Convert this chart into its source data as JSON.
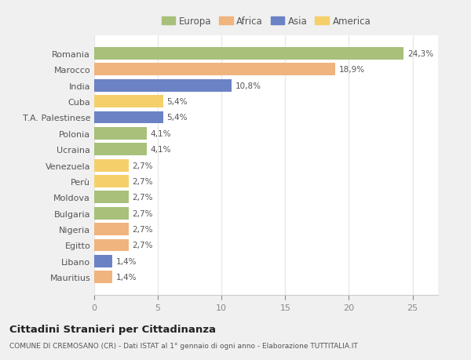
{
  "categories": [
    "Romania",
    "Marocco",
    "India",
    "Cuba",
    "T.A. Palestinese",
    "Polonia",
    "Ucraina",
    "Venezuela",
    "Perù",
    "Moldova",
    "Bulgaria",
    "Nigeria",
    "Egitto",
    "Libano",
    "Mauritius"
  ],
  "values": [
    24.3,
    18.9,
    10.8,
    5.4,
    5.4,
    4.1,
    4.1,
    2.7,
    2.7,
    2.7,
    2.7,
    2.7,
    2.7,
    1.4,
    1.4
  ],
  "labels": [
    "24,3%",
    "18,9%",
    "10,8%",
    "5,4%",
    "5,4%",
    "4,1%",
    "4,1%",
    "2,7%",
    "2,7%",
    "2,7%",
    "2,7%",
    "2,7%",
    "2,7%",
    "1,4%",
    "1,4%"
  ],
  "colors": [
    "#a8c07a",
    "#f0b47e",
    "#6b82c4",
    "#f5d06a",
    "#6b82c4",
    "#a8c07a",
    "#a8c07a",
    "#f5d06a",
    "#f5d06a",
    "#a8c07a",
    "#a8c07a",
    "#f0b47e",
    "#f0b47e",
    "#6b82c4",
    "#f0b47e"
  ],
  "continents": [
    "Europa",
    "Africa",
    "Asia",
    "America"
  ],
  "legend_colors": [
    "#a8c07a",
    "#f0b47e",
    "#6b82c4",
    "#f5d06a"
  ],
  "xlim": [
    0,
    27
  ],
  "xticks": [
    0,
    5,
    10,
    15,
    20,
    25
  ],
  "title1": "Cittadini Stranieri per Cittadinanza",
  "title2": "COMUNE DI CREMOSANO (CR) - Dati ISTAT al 1° gennaio di ogni anno - Elaborazione TUTTITALIA.IT",
  "fig_bg_color": "#f0f0f0",
  "plot_bg_color": "#ffffff",
  "grid_color": "#e8e8e8",
  "bar_height": 0.78
}
